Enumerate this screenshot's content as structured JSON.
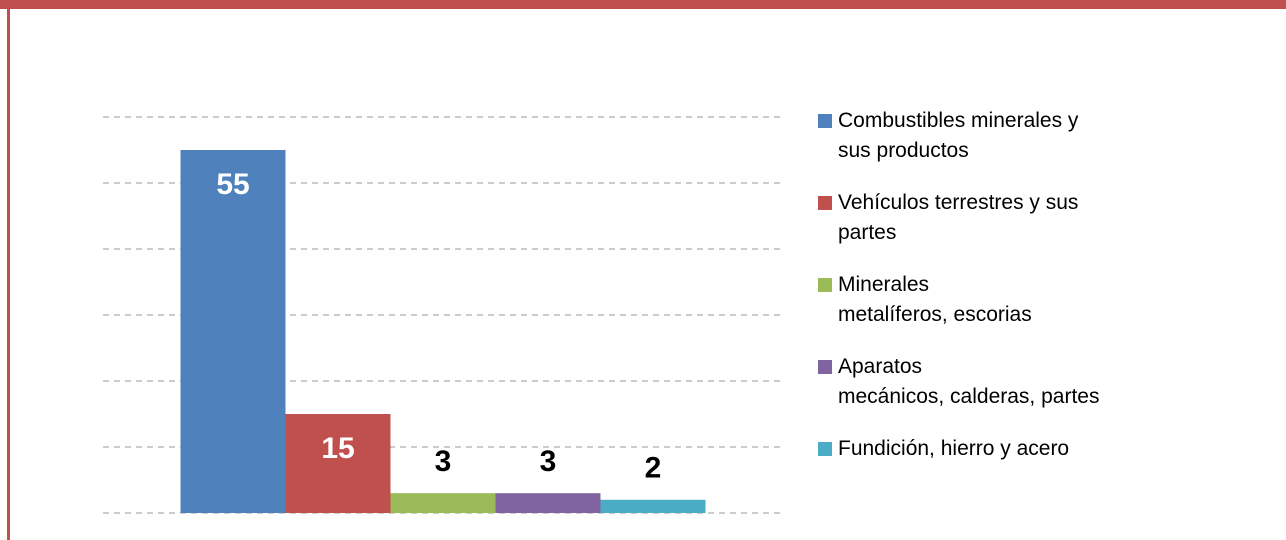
{
  "chart_data": {
    "type": "bar",
    "categories": [
      null
    ],
    "series": [
      {
        "name": "Combustibles minerales y\nsus productos",
        "color": "#4f81bd",
        "values": [
          55
        ]
      },
      {
        "name": "Vehículos terrestres y sus\npartes",
        "color": "#c0504d",
        "values": [
          15
        ]
      },
      {
        "name": "Minerales\nmetalíferos, escorias",
        "color": "#9bbb59",
        "values": [
          3
        ]
      },
      {
        "name": "Aparatos\nmecánicos, calderas, partes",
        "color": "#8064a2",
        "values": [
          3
        ]
      },
      {
        "name": "Fundición, hierro y acero",
        "color": "#4bacc6",
        "values": [
          2
        ]
      }
    ],
    "ylim": [
      0,
      60
    ],
    "yticks": [
      0,
      10,
      20,
      30,
      40,
      50,
      60
    ],
    "grid": true,
    "legend": "right"
  }
}
